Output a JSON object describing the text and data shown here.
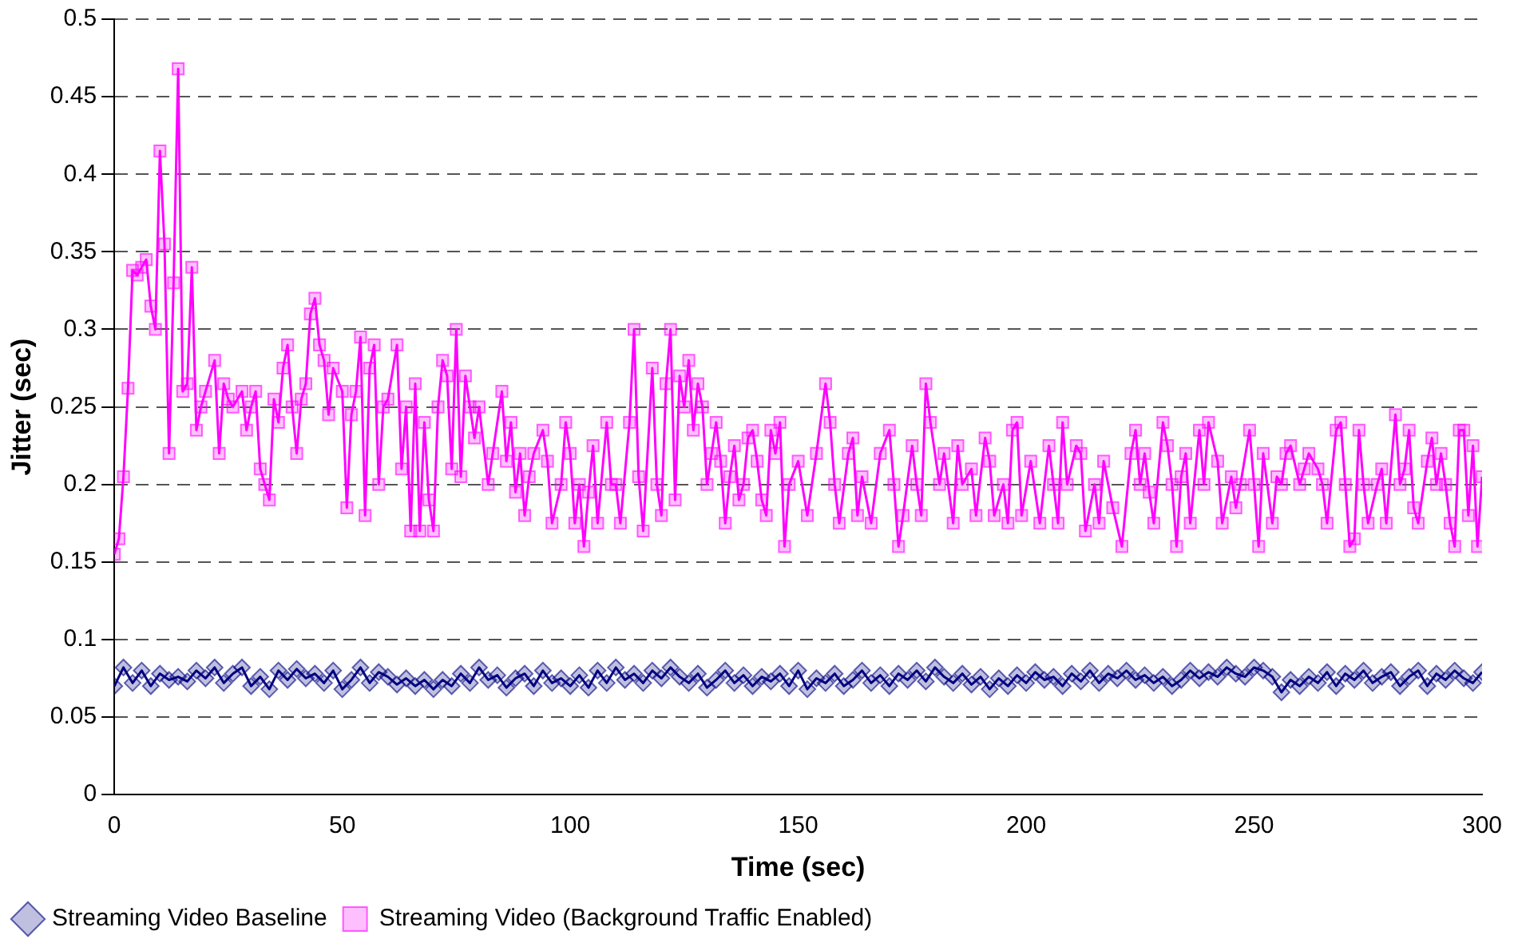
{
  "chart_data": {
    "type": "line",
    "xlabel": "Time (sec)",
    "ylabel": "Jitter (sec)",
    "xlim": [
      0,
      300
    ],
    "xticks": [
      0,
      50,
      100,
      150,
      200,
      250,
      300
    ],
    "ylim": [
      0,
      0.5
    ],
    "yticks": [
      0,
      0.05,
      0.1,
      0.15,
      0.2,
      0.25,
      0.3,
      0.35,
      0.4,
      0.45,
      0.5
    ],
    "grid": "y",
    "legend": "bottom",
    "line_style": "solid",
    "series": [
      {
        "name": "Streaming Video Baseline",
        "color": "#000080",
        "marker": "diamond",
        "x": [
          0,
          2,
          4,
          6,
          8,
          10,
          12,
          14,
          16,
          18,
          20,
          22,
          24,
          26,
          28,
          30,
          32,
          34,
          36,
          38,
          40,
          42,
          44,
          46,
          48,
          50,
          52,
          54,
          56,
          58,
          60,
          62,
          64,
          66,
          68,
          70,
          72,
          74,
          76,
          78,
          80,
          82,
          84,
          86,
          88,
          90,
          92,
          94,
          96,
          98,
          100,
          102,
          104,
          106,
          108,
          110,
          112,
          114,
          116,
          118,
          120,
          122,
          124,
          126,
          128,
          130,
          132,
          134,
          136,
          138,
          140,
          142,
          144,
          146,
          148,
          150,
          152,
          154,
          156,
          158,
          160,
          162,
          164,
          166,
          168,
          170,
          172,
          174,
          176,
          178,
          180,
          182,
          184,
          186,
          188,
          190,
          192,
          194,
          196,
          198,
          200,
          202,
          204,
          206,
          208,
          210,
          212,
          214,
          216,
          218,
          220,
          222,
          224,
          226,
          228,
          230,
          232,
          234,
          236,
          238,
          240,
          242,
          244,
          246,
          248,
          250,
          252,
          254,
          256,
          258,
          260,
          262,
          264,
          266,
          268,
          270,
          272,
          274,
          276,
          278,
          280,
          282,
          284,
          286,
          288,
          290,
          292,
          294,
          296,
          298,
          300
        ],
        "values": [
          0.07,
          0.082,
          0.072,
          0.08,
          0.07,
          0.078,
          0.074,
          0.076,
          0.073,
          0.08,
          0.075,
          0.082,
          0.072,
          0.078,
          0.082,
          0.07,
          0.076,
          0.068,
          0.08,
          0.074,
          0.081,
          0.075,
          0.078,
          0.072,
          0.08,
          0.068,
          0.074,
          0.082,
          0.072,
          0.079,
          0.076,
          0.071,
          0.075,
          0.07,
          0.074,
          0.068,
          0.074,
          0.07,
          0.078,
          0.072,
          0.082,
          0.074,
          0.077,
          0.069,
          0.075,
          0.078,
          0.07,
          0.08,
          0.072,
          0.075,
          0.07,
          0.077,
          0.069,
          0.08,
          0.072,
          0.082,
          0.074,
          0.078,
          0.072,
          0.08,
          0.075,
          0.082,
          0.076,
          0.072,
          0.078,
          0.069,
          0.074,
          0.08,
          0.072,
          0.077,
          0.07,
          0.076,
          0.073,
          0.078,
          0.07,
          0.08,
          0.068,
          0.075,
          0.072,
          0.078,
          0.07,
          0.074,
          0.08,
          0.072,
          0.077,
          0.07,
          0.078,
          0.074,
          0.08,
          0.073,
          0.082,
          0.076,
          0.072,
          0.078,
          0.071,
          0.076,
          0.068,
          0.075,
          0.07,
          0.077,
          0.072,
          0.079,
          0.074,
          0.076,
          0.07,
          0.078,
          0.073,
          0.08,
          0.072,
          0.078,
          0.075,
          0.08,
          0.074,
          0.077,
          0.072,
          0.076,
          0.07,
          0.074,
          0.08,
          0.075,
          0.079,
          0.076,
          0.082,
          0.078,
          0.076,
          0.082,
          0.08,
          0.076,
          0.066,
          0.074,
          0.07,
          0.076,
          0.072,
          0.079,
          0.07,
          0.078,
          0.074,
          0.08,
          0.072,
          0.076,
          0.079,
          0.07,
          0.076,
          0.08,
          0.07,
          0.078,
          0.074,
          0.08,
          0.075,
          0.072,
          0.079
        ]
      },
      {
        "name": "Streaming Video (Background Traffic Enabled)",
        "color": "#ff00ff",
        "marker": "square",
        "x": [
          0,
          1,
          2,
          3,
          4,
          5,
          6,
          7,
          8,
          9,
          10,
          11,
          12,
          13,
          14,
          15,
          16,
          17,
          18,
          19,
          20,
          22,
          23,
          24,
          25,
          26,
          28,
          29,
          30,
          31,
          32,
          33,
          34,
          35,
          36,
          37,
          38,
          39,
          40,
          41,
          42,
          43,
          44,
          45,
          46,
          47,
          48,
          50,
          51,
          52,
          53,
          54,
          55,
          56,
          57,
          58,
          59,
          60,
          62,
          63,
          64,
          65,
          66,
          67,
          68,
          69,
          70,
          71,
          72,
          73,
          74,
          75,
          76,
          77,
          78,
          79,
          80,
          82,
          83,
          85,
          86,
          87,
          88,
          89,
          90,
          91,
          92,
          94,
          95,
          96,
          98,
          99,
          100,
          101,
          102,
          103,
          104,
          105,
          106,
          108,
          109,
          110,
          111,
          113,
          114,
          115,
          116,
          118,
          119,
          120,
          121,
          122,
          123,
          124,
          125,
          126,
          127,
          128,
          129,
          130,
          131,
          132,
          133,
          134,
          135,
          136,
          137,
          138,
          139,
          140,
          141,
          142,
          143,
          144,
          145,
          146,
          147,
          148,
          150,
          152,
          154,
          156,
          157,
          158,
          159,
          161,
          162,
          163,
          164,
          166,
          168,
          170,
          171,
          172,
          173,
          175,
          176,
          177,
          178,
          179,
          181,
          182,
          184,
          185,
          186,
          188,
          189,
          191,
          192,
          193,
          195,
          196,
          197,
          198,
          199,
          201,
          203,
          205,
          206,
          207,
          208,
          209,
          211,
          212,
          213,
          215,
          216,
          217,
          219,
          221,
          223,
          224,
          225,
          226,
          227,
          228,
          230,
          231,
          232,
          233,
          234,
          235,
          236,
          238,
          239,
          240,
          242,
          243,
          245,
          246,
          247,
          249,
          250,
          251,
          252,
          254,
          255,
          256,
          257,
          258,
          260,
          261,
          262,
          264,
          265,
          266,
          268,
          269,
          270,
          271,
          272,
          273,
          274,
          275,
          277,
          278,
          279,
          281,
          282,
          283,
          284,
          285,
          286,
          288,
          289,
          290,
          291,
          292,
          293,
          294,
          295,
          296,
          297,
          298,
          299,
          300
        ],
        "values": [
          0.155,
          0.165,
          0.205,
          0.262,
          0.338,
          0.335,
          0.34,
          0.345,
          0.315,
          0.3,
          0.415,
          0.355,
          0.22,
          0.33,
          0.468,
          0.26,
          0.265,
          0.34,
          0.235,
          0.25,
          0.26,
          0.28,
          0.22,
          0.265,
          0.255,
          0.25,
          0.26,
          0.235,
          0.25,
          0.26,
          0.21,
          0.2,
          0.19,
          0.255,
          0.24,
          0.275,
          0.29,
          0.25,
          0.22,
          0.255,
          0.265,
          0.31,
          0.32,
          0.29,
          0.28,
          0.245,
          0.275,
          0.26,
          0.185,
          0.245,
          0.26,
          0.295,
          0.18,
          0.275,
          0.29,
          0.2,
          0.25,
          0.255,
          0.29,
          0.21,
          0.25,
          0.17,
          0.265,
          0.17,
          0.24,
          0.19,
          0.17,
          0.25,
          0.28,
          0.27,
          0.21,
          0.3,
          0.205,
          0.27,
          0.25,
          0.23,
          0.25,
          0.2,
          0.22,
          0.26,
          0.215,
          0.24,
          0.195,
          0.22,
          0.18,
          0.205,
          0.22,
          0.235,
          0.215,
          0.175,
          0.2,
          0.24,
          0.22,
          0.175,
          0.2,
          0.16,
          0.195,
          0.225,
          0.175,
          0.24,
          0.2,
          0.2,
          0.175,
          0.24,
          0.3,
          0.205,
          0.17,
          0.275,
          0.2,
          0.18,
          0.265,
          0.3,
          0.19,
          0.27,
          0.25,
          0.28,
          0.235,
          0.265,
          0.25,
          0.2,
          0.22,
          0.24,
          0.215,
          0.175,
          0.205,
          0.225,
          0.19,
          0.2,
          0.23,
          0.235,
          0.215,
          0.19,
          0.18,
          0.235,
          0.22,
          0.24,
          0.16,
          0.2,
          0.215,
          0.18,
          0.22,
          0.265,
          0.24,
          0.2,
          0.175,
          0.22,
          0.23,
          0.18,
          0.205,
          0.175,
          0.22,
          0.235,
          0.2,
          0.16,
          0.18,
          0.225,
          0.2,
          0.18,
          0.265,
          0.24,
          0.2,
          0.22,
          0.175,
          0.225,
          0.2,
          0.21,
          0.18,
          0.23,
          0.215,
          0.18,
          0.2,
          0.175,
          0.235,
          0.24,
          0.18,
          0.215,
          0.175,
          0.225,
          0.2,
          0.175,
          0.24,
          0.2,
          0.225,
          0.22,
          0.17,
          0.2,
          0.175,
          0.215,
          0.185,
          0.16,
          0.22,
          0.235,
          0.2,
          0.22,
          0.195,
          0.175,
          0.24,
          0.225,
          0.2,
          0.16,
          0.205,
          0.22,
          0.175,
          0.235,
          0.2,
          0.24,
          0.215,
          0.175,
          0.205,
          0.185,
          0.2,
          0.235,
          0.2,
          0.16,
          0.22,
          0.175,
          0.205,
          0.2,
          0.22,
          0.225,
          0.2,
          0.21,
          0.22,
          0.21,
          0.2,
          0.175,
          0.235,
          0.24,
          0.2,
          0.16,
          0.165,
          0.235,
          0.2,
          0.175,
          0.2,
          0.21,
          0.175,
          0.245,
          0.2,
          0.21,
          0.235,
          0.185,
          0.175,
          0.215,
          0.23,
          0.2,
          0.22,
          0.2,
          0.175,
          0.16,
          0.235,
          0.235,
          0.18,
          0.225,
          0.16,
          0.205
        ]
      }
    ]
  }
}
